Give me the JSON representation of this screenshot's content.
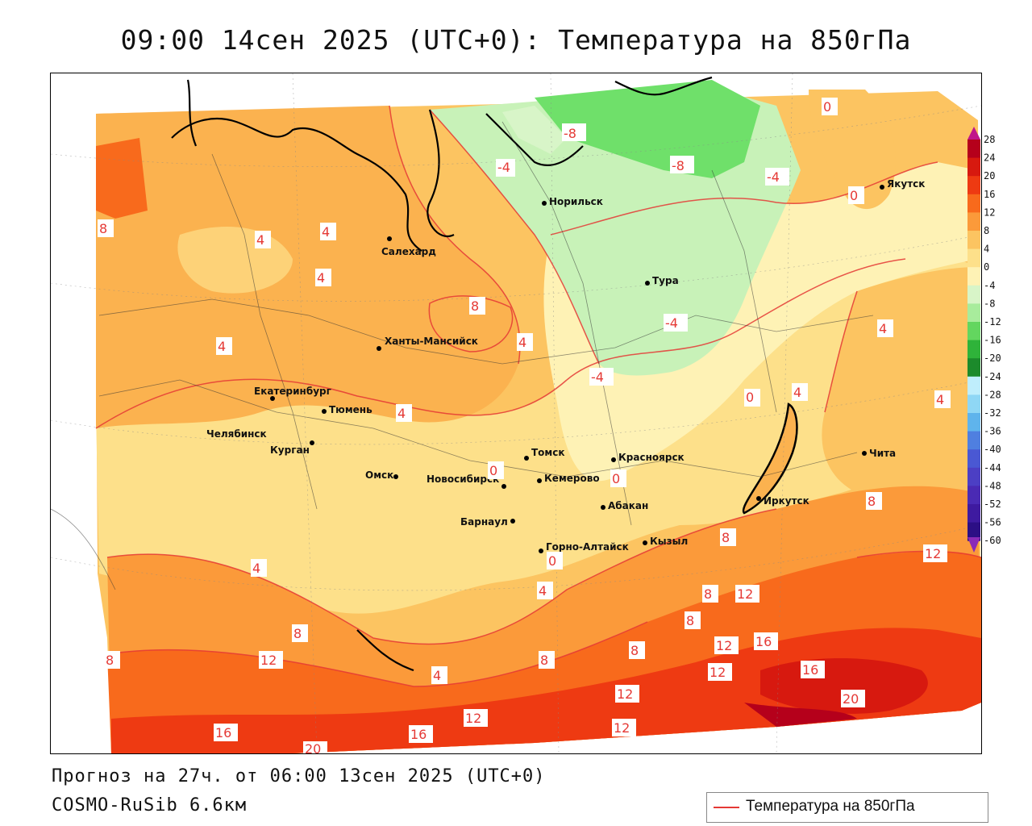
{
  "title": "09:00 14сен 2025 (UTC+0): Температура на 850гПа",
  "footer": {
    "forecast": "Прогноз на 27ч. от 06:00 13сен 2025 (UTC+0)",
    "model": "COSMO-RuSib 6.6км"
  },
  "legend": {
    "label": "Температура на 850гПа",
    "line_color": "#e53935"
  },
  "colorbar": {
    "ticks": [
      "28",
      "24",
      "20",
      "16",
      "12",
      "8",
      "4",
      "0",
      "-4",
      "-8",
      "-12",
      "-16",
      "-20",
      "-24",
      "-28",
      "-32",
      "-36",
      "-40",
      "-44",
      "-48",
      "-52",
      "-56",
      "-60"
    ],
    "colors": [
      "#b5001b",
      "#d7190f",
      "#ee3a12",
      "#f86a1c",
      "#fb9a3a",
      "#fcc461",
      "#fde08a",
      "#fef2b5",
      "#d8f5c8",
      "#a8ec9c",
      "#63d65f",
      "#2fb33a",
      "#1c8a2b",
      "#bfeefc",
      "#8fd7f5",
      "#5fb4ec",
      "#4f7fe0",
      "#4a58d3",
      "#4c3fc4",
      "#4a2ab4",
      "#3e1aa0",
      "#2c0f85"
    ],
    "top_arrow_color": "#c0168a",
    "bottom_arrow_color": "#8a2ab8"
  },
  "cities": [
    {
      "name": "Норильск"
    },
    {
      "name": "Якутск"
    },
    {
      "name": "Салехард"
    },
    {
      "name": "Тура"
    },
    {
      "name": "Ханты-Мансийск"
    },
    {
      "name": "Екатеринбург"
    },
    {
      "name": "Тюмень"
    },
    {
      "name": "Челябинск"
    },
    {
      "name": "Курган"
    },
    {
      "name": "Омск"
    },
    {
      "name": "Новосибирск"
    },
    {
      "name": "Томск"
    },
    {
      "name": "Красноярск"
    },
    {
      "name": "Кемерово"
    },
    {
      "name": "Барнаул"
    },
    {
      "name": "Абакан"
    },
    {
      "name": "Горно-Алтайск"
    },
    {
      "name": "Кызыл"
    },
    {
      "name": "Иркутск"
    },
    {
      "name": "Чита"
    }
  ],
  "isotherm_labels": [
    "-8",
    "-8",
    "-4",
    "-4",
    "-4",
    "0",
    "0",
    "0",
    "0",
    "0",
    "-4",
    "4",
    "4",
    "4",
    "4",
    "4",
    "4",
    "4",
    "4",
    "4",
    "4",
    "4",
    "4",
    "8",
    "8",
    "8",
    "8",
    "8",
    "8",
    "8",
    "8",
    "8",
    "8",
    "12",
    "12",
    "12",
    "12",
    "12",
    "12",
    "12",
    "12",
    "16",
    "16",
    "16",
    "16",
    "20",
    "20",
    "0"
  ]
}
